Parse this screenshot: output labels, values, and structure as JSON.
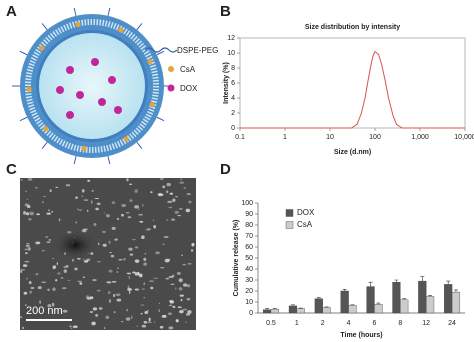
{
  "figure": {
    "panel_labels": [
      "A",
      "B",
      "C",
      "D"
    ],
    "diagram_legend": [
      "DSPE-PEG",
      "CsA",
      "DOX"
    ],
    "scale_bar": "200 nm"
  },
  "chart_data": [
    {
      "type": "line",
      "title": "Size distribution by intensity",
      "x_label": "Size (d.nm)",
      "y_label": "Intensity (%)",
      "xscale": "log",
      "color": "#d9534f",
      "x": [
        0.1,
        30,
        40,
        50,
        60,
        70,
        80,
        90,
        100,
        120,
        140,
        170,
        200,
        250,
        300,
        400,
        10000
      ],
      "values": [
        0,
        0,
        0.5,
        2,
        4,
        6.3,
        8.2,
        9.6,
        10.2,
        9.8,
        8.5,
        6.2,
        4,
        1.7,
        0.5,
        0,
        0
      ],
      "xlim": [
        0.1,
        10000
      ],
      "xticks": [
        0.1,
        1,
        10,
        100,
        {
          "value": 1000,
          "label": "1,000"
        },
        {
          "value": 10000,
          "label": "10,000"
        }
      ],
      "ylim": [
        0,
        12
      ],
      "yticks": [
        0,
        2,
        4,
        6,
        8,
        10,
        12
      ]
    },
    {
      "type": "bar",
      "x_label": "Time (hours)",
      "y_label": "Cumulative release (%)",
      "categories": [
        "0.5",
        "1",
        "2",
        "4",
        "6",
        "8",
        "12",
        "24"
      ],
      "series": [
        {
          "name": "DOX",
          "color": "#555555",
          "values": [
            3,
            6.5,
            13,
            20,
            24,
            28,
            29,
            26
          ],
          "errors": [
            1,
            1,
            1,
            1.5,
            4,
            2,
            4,
            3
          ]
        },
        {
          "name": "CsA",
          "color": "#cccccc",
          "values": [
            3.5,
            4,
            5,
            7,
            8,
            12,
            15,
            19
          ],
          "errors": [
            0.5,
            0.5,
            0.5,
            0.5,
            1,
            1,
            1,
            2
          ]
        }
      ],
      "ylim": [
        0,
        100
      ],
      "yticks": [
        0,
        10,
        20,
        30,
        40,
        50,
        60,
        70,
        80,
        90,
        100
      ]
    }
  ]
}
